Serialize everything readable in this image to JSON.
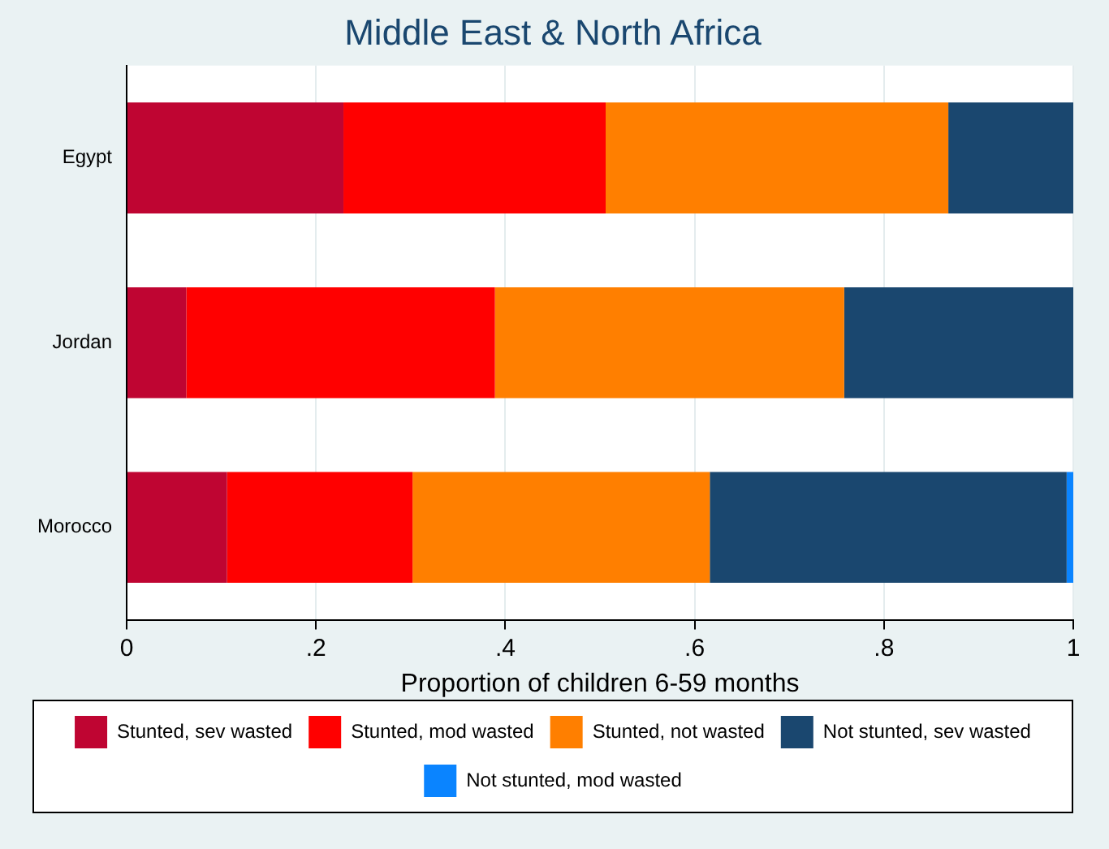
{
  "chart_data": {
    "type": "bar",
    "orientation": "horizontal",
    "stacked": true,
    "title": "Middle East & North Africa",
    "xlabel": "Proportion of children 6-59 months",
    "categories": [
      "Egypt",
      "Jordan",
      "Morocco"
    ],
    "series": [
      {
        "name": "Stunted, sev wasted",
        "color": "#bf0532",
        "values": [
          0.229,
          0.063,
          0.106
        ]
      },
      {
        "name": "Stunted, mod wasted",
        "color": "#ff0000",
        "values": [
          0.277,
          0.326,
          0.196
        ]
      },
      {
        "name": "Stunted, not wasted",
        "color": "#ff7f00",
        "values": [
          0.362,
          0.369,
          0.314
        ]
      },
      {
        "name": "Not stunted, sev wasted",
        "color": "#1a476f",
        "values": [
          0.132,
          0.242,
          0.377
        ]
      },
      {
        "name": "Not stunted, mod wasted",
        "color": "#0a84ff",
        "values": [
          0,
          0,
          0.007
        ]
      }
    ],
    "xlim": [
      0,
      1
    ],
    "xticks": [
      {
        "value": 0,
        "label": "0"
      },
      {
        "value": 0.2,
        "label": ".2"
      },
      {
        "value": 0.4,
        "label": ".4"
      },
      {
        "value": 0.6,
        "label": ".6"
      },
      {
        "value": 0.8,
        "label": ".8"
      },
      {
        "value": 1,
        "label": "1"
      }
    ],
    "grid": "x",
    "legend": "bottom"
  }
}
